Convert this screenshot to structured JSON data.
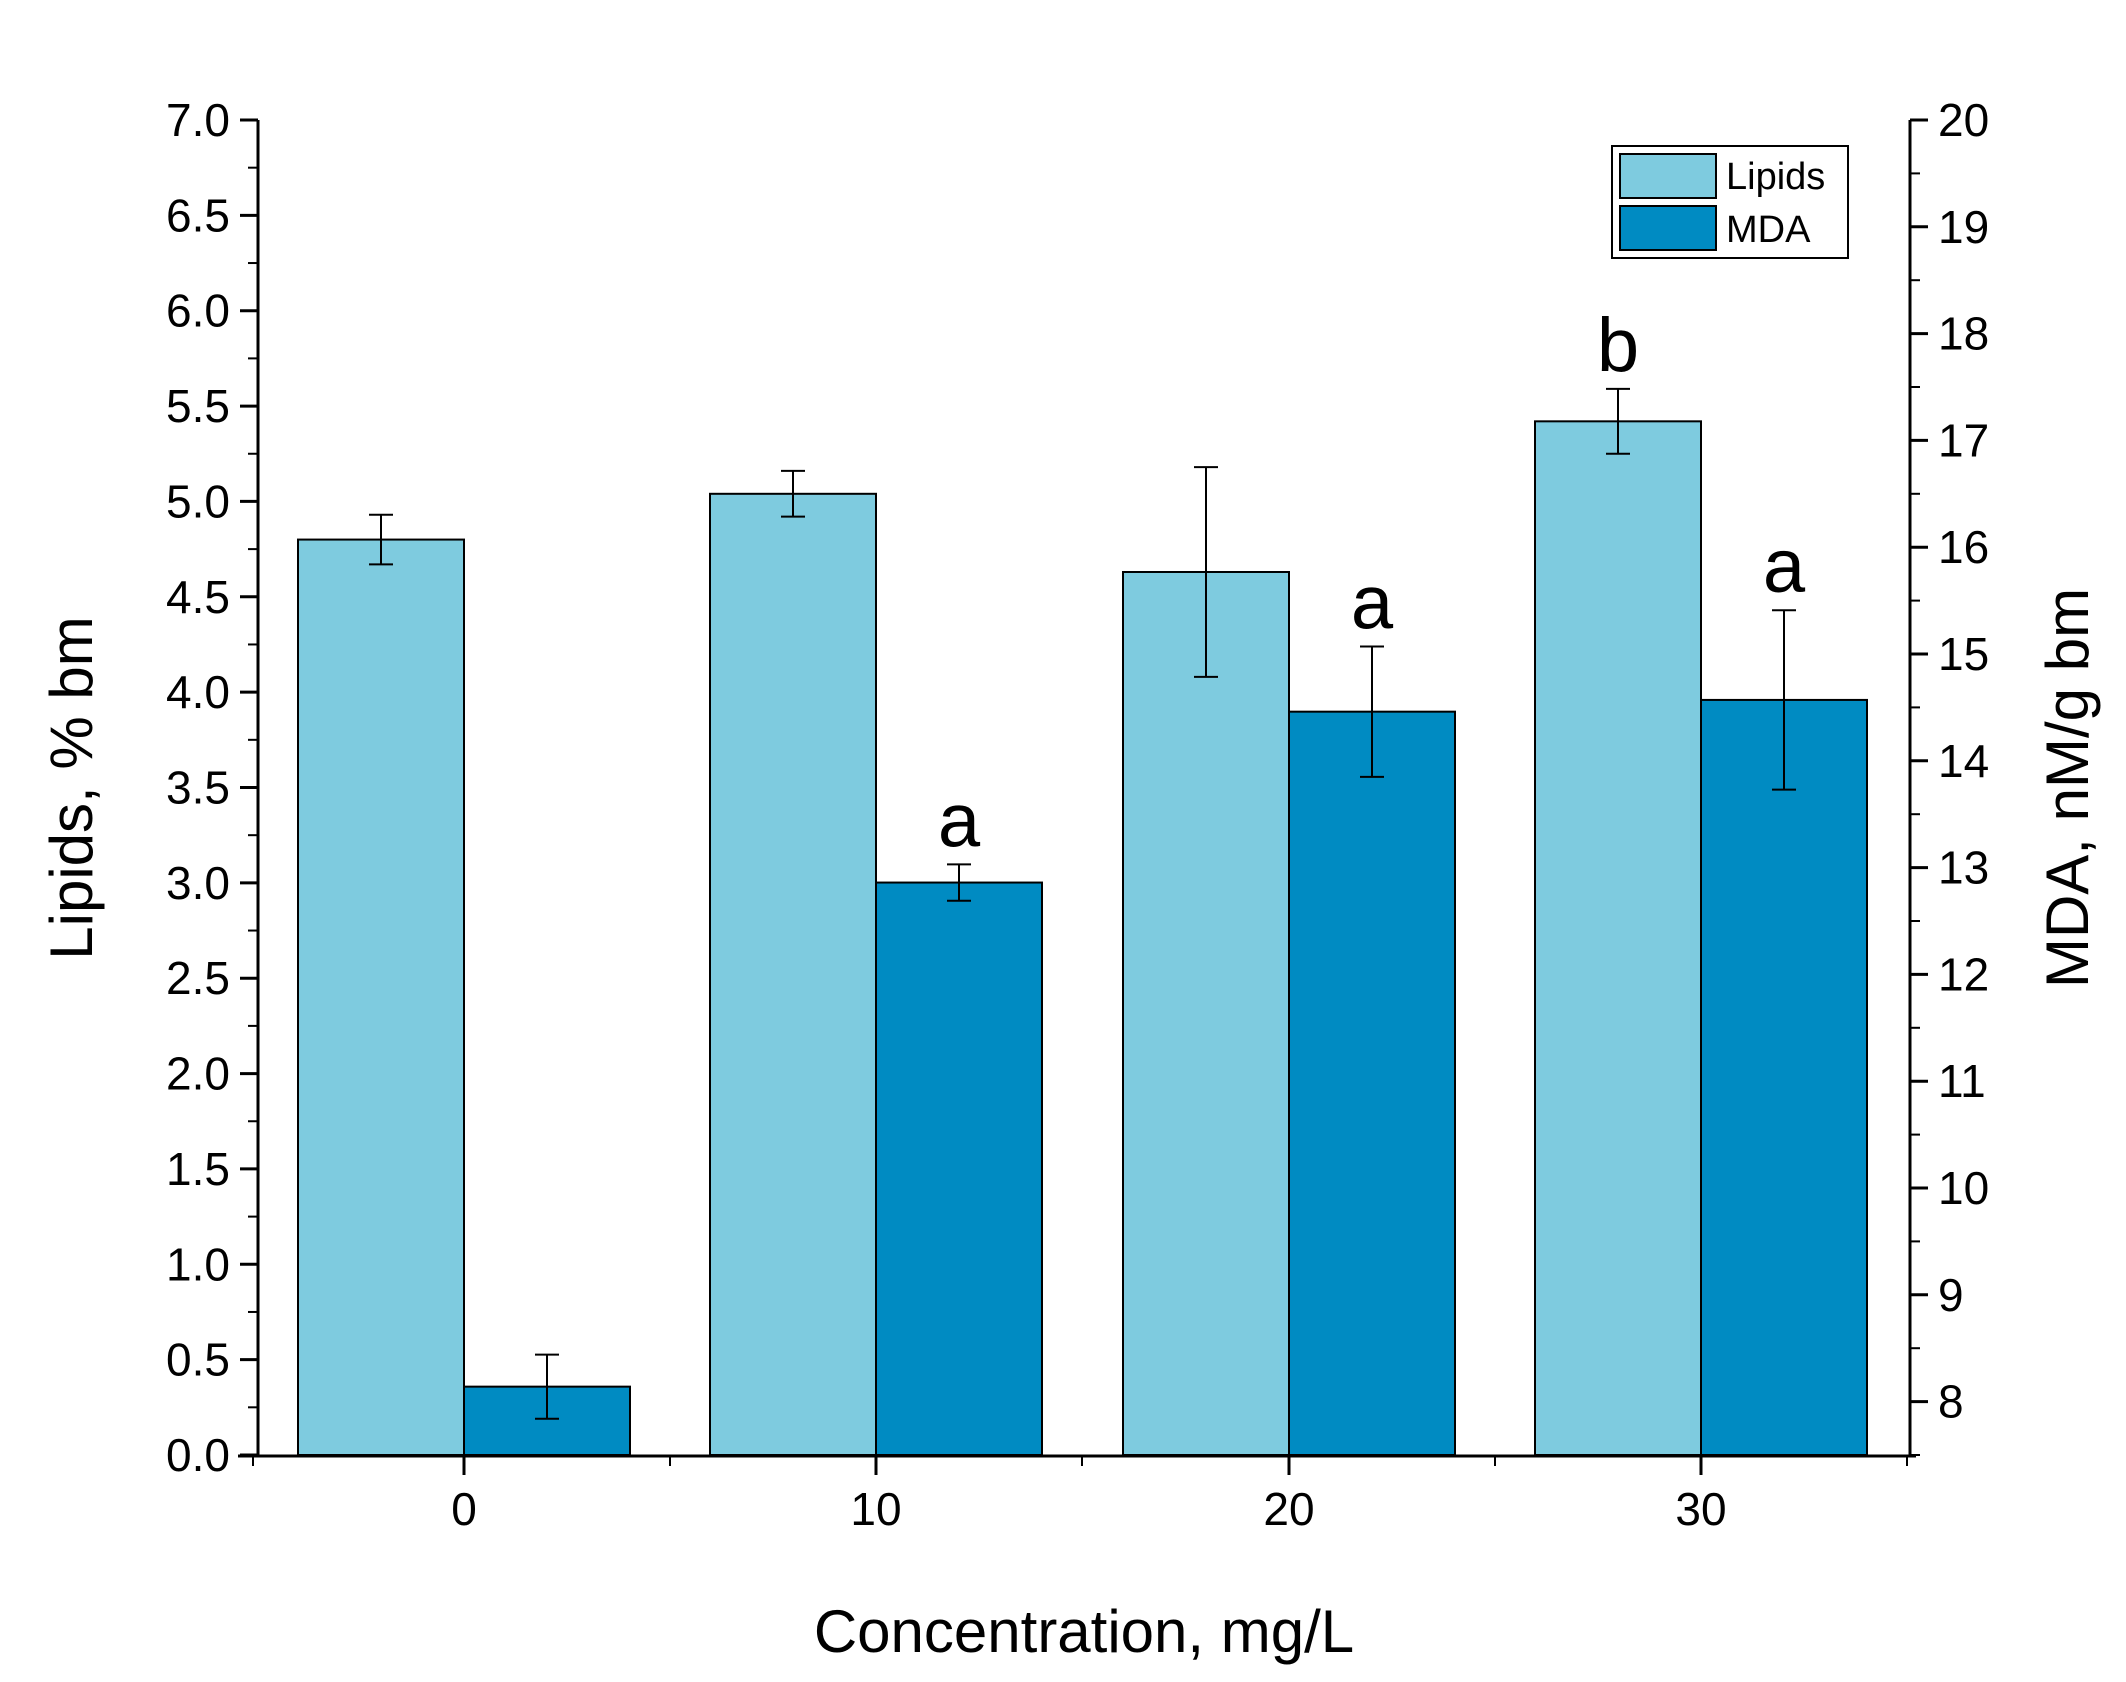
{
  "chart_data": {
    "type": "bar",
    "categories": [
      "0",
      "10",
      "20",
      "30"
    ],
    "xlabel": "Concentration, mg/L",
    "ylabel": "Lipids, % bm",
    "y2label": "MDA, nM/g bm",
    "ylim": [
      0,
      7
    ],
    "y2lim": [
      7.5,
      20
    ],
    "yticks": [
      "0.0",
      "0.5",
      "1.0",
      "1.5",
      "2.0",
      "2.5",
      "3.0",
      "3.5",
      "4.0",
      "4.5",
      "5.0",
      "5.5",
      "6.0",
      "6.5",
      "7.0"
    ],
    "y2ticks": [
      "8",
      "9",
      "10",
      "11",
      "12",
      "13",
      "14",
      "15",
      "16",
      "17",
      "18",
      "19",
      "20"
    ],
    "legend_position": "top-right",
    "series": [
      {
        "name": "Lipids",
        "axis": "left",
        "color": "#7ecbdf",
        "values": [
          4.8,
          5.04,
          4.63,
          5.42
        ],
        "errors": [
          0.13,
          0.12,
          0.55,
          0.17
        ],
        "annotations": [
          "",
          "",
          "",
          "b"
        ]
      },
      {
        "name": "MDA",
        "axis": "right",
        "color": "#008bc2",
        "values": [
          8.14,
          12.86,
          14.46,
          14.57
        ],
        "errors": [
          0.3,
          0.17,
          0.61,
          0.84
        ],
        "annotations": [
          "",
          "a",
          "a",
          "a"
        ]
      }
    ]
  }
}
